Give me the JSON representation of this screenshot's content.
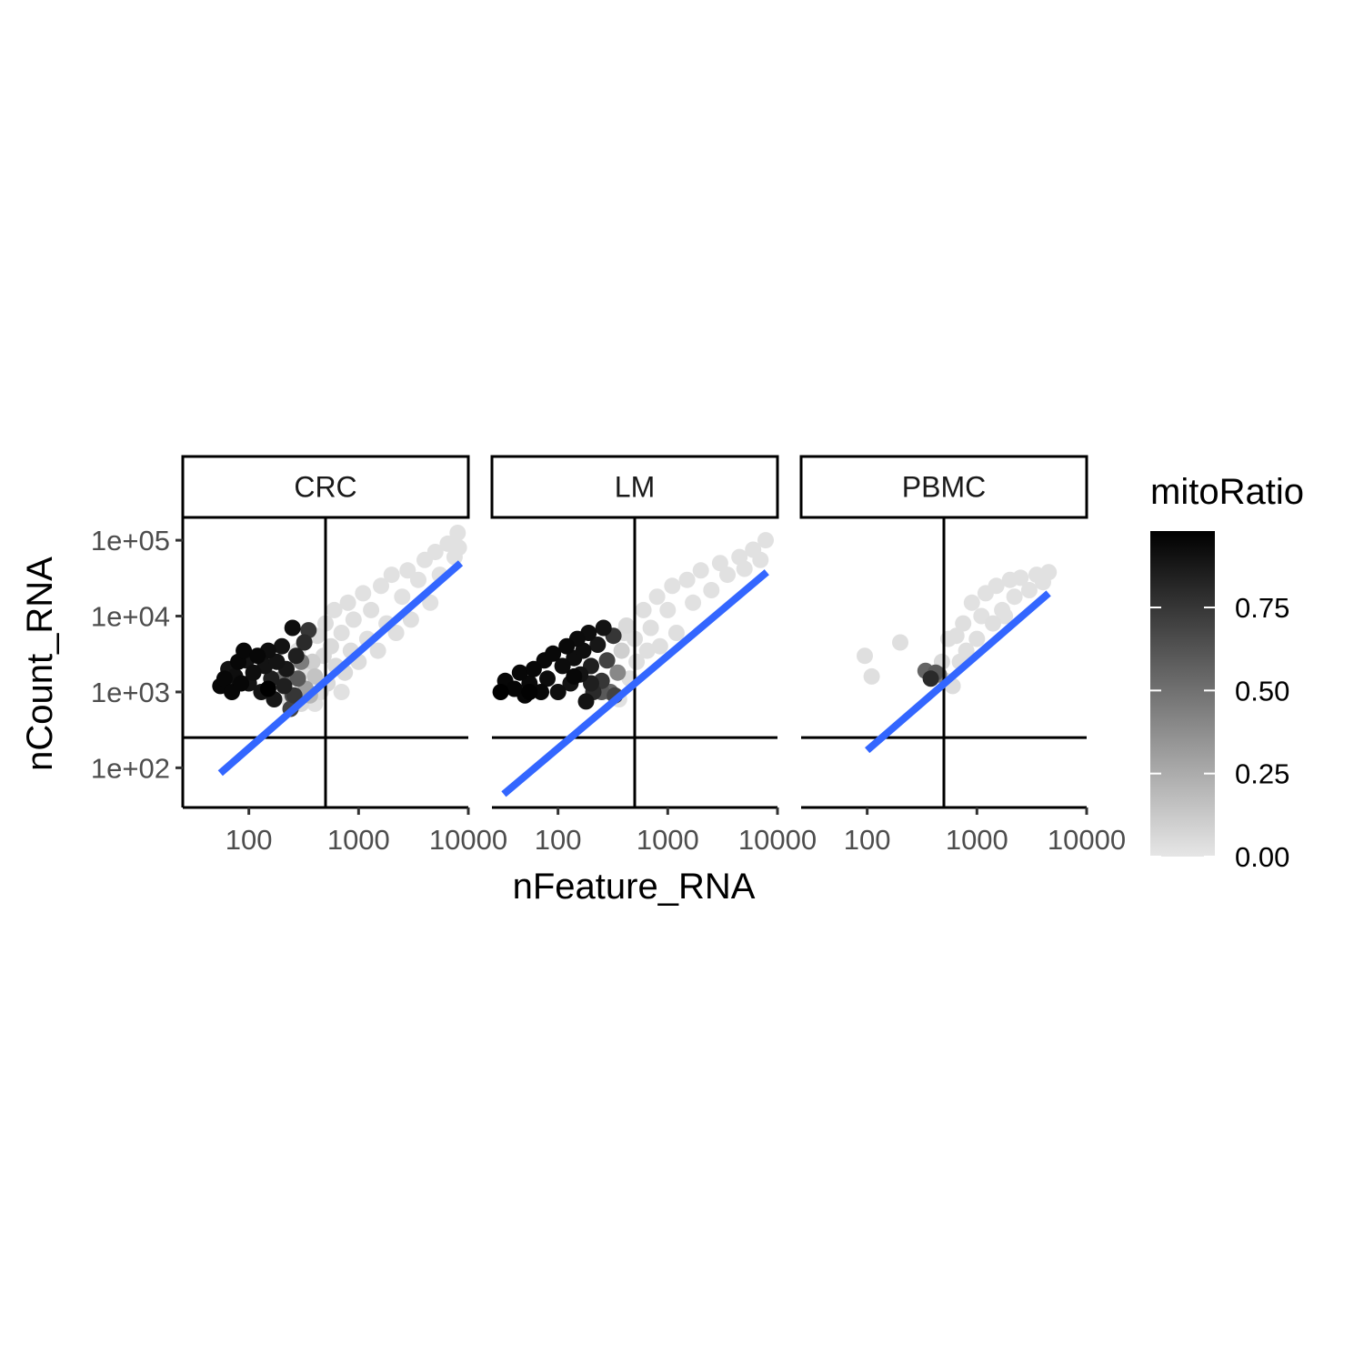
{
  "chart_data": {
    "type": "scatter",
    "x_scale": "log10",
    "y_scale": "log10",
    "xlabel": "nFeature_RNA",
    "ylabel": "nCount_RNA",
    "xlim": [
      25,
      10000
    ],
    "ylim": [
      30,
      200000
    ],
    "x_ticks": [
      {
        "value": 100,
        "label": "100"
      },
      {
        "value": 1000,
        "label": "1000"
      },
      {
        "value": 10000,
        "label": "10000"
      }
    ],
    "y_ticks": [
      {
        "value": 100,
        "label": "1e+02"
      },
      {
        "value": 1000,
        "label": "1e+03"
      },
      {
        "value": 10000,
        "label": "1e+04"
      },
      {
        "value": 100000,
        "label": "1e+05"
      }
    ],
    "grid": false,
    "reference_lines": {
      "x": 500,
      "y": 250
    },
    "fit_line_color": "#3366FF",
    "color_scale": {
      "title": "mitoRatio",
      "variable": "mitoRatio",
      "low_color": "#e6e6e6",
      "high_color": "#000000",
      "range": [
        0,
        0.98
      ],
      "breaks": [
        {
          "value": 0,
          "label": "0.00"
        },
        {
          "value": 0.25,
          "label": "0.25"
        },
        {
          "value": 0.5,
          "label": "0.50"
        },
        {
          "value": 0.75,
          "label": "0.75"
        }
      ]
    },
    "facets": [
      {
        "label": "CRC",
        "fit_line": {
          "x": [
            55,
            8500
          ],
          "y": [
            85,
            50000
          ]
        },
        "points": [
          [
            55,
            1200,
            0.95
          ],
          [
            60,
            1500,
            0.95
          ],
          [
            65,
            2000,
            0.9
          ],
          [
            70,
            1000,
            0.95
          ],
          [
            75,
            1600,
            0.92
          ],
          [
            80,
            2500,
            0.95
          ],
          [
            90,
            3500,
            0.95
          ],
          [
            100,
            1300,
            0.9
          ],
          [
            110,
            1800,
            0.92
          ],
          [
            120,
            3000,
            0.95
          ],
          [
            130,
            1000,
            0.9
          ],
          [
            140,
            2200,
            0.9
          ],
          [
            150,
            3500,
            0.92
          ],
          [
            160,
            1500,
            0.85
          ],
          [
            170,
            800,
            0.88
          ],
          [
            180,
            2500,
            0.9
          ],
          [
            200,
            4000,
            0.9
          ],
          [
            210,
            1200,
            0.85
          ],
          [
            220,
            2000,
            0.88
          ],
          [
            240,
            600,
            0.7
          ],
          [
            250,
            7000,
            0.92
          ],
          [
            260,
            900,
            0.75
          ],
          [
            270,
            3000,
            0.85
          ],
          [
            280,
            1500,
            0.6
          ],
          [
            300,
            700,
            0.05
          ],
          [
            300,
            2500,
            0.45
          ],
          [
            320,
            4500,
            0.8
          ],
          [
            330,
            1100,
            0.3
          ],
          [
            350,
            6500,
            0.75
          ],
          [
            360,
            900,
            0.2
          ],
          [
            380,
            2500,
            0.1
          ],
          [
            400,
            1600,
            0.15
          ],
          [
            420,
            5500,
            0.05
          ],
          [
            450,
            1000,
            0.05
          ],
          [
            480,
            3000,
            0.05
          ],
          [
            500,
            8000,
            0.04
          ],
          [
            520,
            1300,
            0.05
          ],
          [
            560,
            4000,
            0.05
          ],
          [
            600,
            12000,
            0.03
          ],
          [
            620,
            2200,
            0.05
          ],
          [
            700,
            6000,
            0.03
          ],
          [
            750,
            1800,
            0.05
          ],
          [
            800,
            15000,
            0.03
          ],
          [
            850,
            3500,
            0.04
          ],
          [
            900,
            9000,
            0.03
          ],
          [
            1000,
            2500,
            0.04
          ],
          [
            1100,
            20000,
            0.02
          ],
          [
            1200,
            5000,
            0.03
          ],
          [
            1300,
            12000,
            0.03
          ],
          [
            1500,
            3500,
            0.03
          ],
          [
            1600,
            25000,
            0.02
          ],
          [
            1800,
            8000,
            0.03
          ],
          [
            2000,
            35000,
            0.02
          ],
          [
            2200,
            6000,
            0.03
          ],
          [
            2500,
            18000,
            0.02
          ],
          [
            2800,
            40000,
            0.02
          ],
          [
            3000,
            9000,
            0.03
          ],
          [
            3500,
            30000,
            0.02
          ],
          [
            4000,
            55000,
            0.02
          ],
          [
            4500,
            15000,
            0.02
          ],
          [
            5000,
            70000,
            0.02
          ],
          [
            5500,
            35000,
            0.02
          ],
          [
            6500,
            90000,
            0.02
          ],
          [
            7500,
            60000,
            0.02
          ],
          [
            8000,
            125000,
            0.02
          ],
          [
            8200,
            80000,
            0.02
          ],
          [
            250,
            900,
            0.65
          ],
          [
            200,
            1500,
            0.5
          ],
          [
            230,
            800,
            0.02
          ],
          [
            150,
            1100,
            0.98
          ],
          [
            85,
            1300,
            0.95
          ],
          [
            95,
            2600,
            0.9
          ],
          [
            330,
            2000,
            0.03
          ],
          [
            280,
            3500,
            0.02
          ],
          [
            400,
            700,
            0.02
          ],
          [
            700,
            1000,
            0.02
          ]
        ]
      },
      {
        "label": "LM",
        "fit_line": {
          "x": [
            32,
            8000
          ],
          "y": [
            45,
            38000
          ]
        },
        "points": [
          [
            30,
            1000,
            0.98
          ],
          [
            33,
            1400,
            0.95
          ],
          [
            40,
            1100,
            0.96
          ],
          [
            45,
            1800,
            0.95
          ],
          [
            50,
            900,
            0.95
          ],
          [
            55,
            1300,
            0.94
          ],
          [
            60,
            2000,
            0.95
          ],
          [
            70,
            1000,
            0.95
          ],
          [
            75,
            2600,
            0.94
          ],
          [
            80,
            1500,
            0.93
          ],
          [
            90,
            3200,
            0.94
          ],
          [
            100,
            1000,
            0.92
          ],
          [
            110,
            2200,
            0.93
          ],
          [
            120,
            4000,
            0.94
          ],
          [
            130,
            1300,
            0.9
          ],
          [
            140,
            2800,
            0.92
          ],
          [
            150,
            5000,
            0.93
          ],
          [
            160,
            1700,
            0.9
          ],
          [
            170,
            3500,
            0.92
          ],
          [
            190,
            6000,
            0.92
          ],
          [
            200,
            2200,
            0.85
          ],
          [
            210,
            1000,
            0.8
          ],
          [
            230,
            4200,
            0.88
          ],
          [
            250,
            1400,
            0.75
          ],
          [
            260,
            7000,
            0.9
          ],
          [
            280,
            2600,
            0.7
          ],
          [
            300,
            1000,
            0.55
          ],
          [
            320,
            5500,
            0.75
          ],
          [
            350,
            1800,
            0.4
          ],
          [
            360,
            800,
            0.02
          ],
          [
            380,
            3500,
            0.1
          ],
          [
            420,
            7500,
            0.05
          ],
          [
            450,
            1500,
            0.03
          ],
          [
            500,
            5000,
            0.04
          ],
          [
            520,
            2500,
            0.03
          ],
          [
            600,
            12000,
            0.03
          ],
          [
            650,
            3500,
            0.03
          ],
          [
            700,
            7000,
            0.03
          ],
          [
            800,
            18000,
            0.02
          ],
          [
            850,
            4000,
            0.03
          ],
          [
            1000,
            12000,
            0.02
          ],
          [
            1100,
            25000,
            0.02
          ],
          [
            1200,
            6000,
            0.03
          ],
          [
            1500,
            30000,
            0.02
          ],
          [
            1700,
            15000,
            0.02
          ],
          [
            2000,
            40000,
            0.02
          ],
          [
            2500,
            22000,
            0.02
          ],
          [
            3000,
            50000,
            0.02
          ],
          [
            3500,
            35000,
            0.02
          ],
          [
            4500,
            60000,
            0.02
          ],
          [
            5000,
            42000,
            0.02
          ],
          [
            6000,
            75000,
            0.02
          ],
          [
            7000,
            55000,
            0.02
          ],
          [
            7800,
            100000,
            0.02
          ],
          [
            400,
            6000,
            0.04
          ],
          [
            330,
            900,
            0.7
          ],
          [
            250,
            1000,
            0.6
          ],
          [
            200,
            1300,
            0.85
          ],
          [
            180,
            750,
            0.9
          ],
          [
            140,
            1600,
            0.95
          ],
          [
            55,
            1000,
            0.97
          ]
        ]
      },
      {
        "label": "PBMC",
        "fit_line": {
          "x": [
            100,
            4500
          ],
          "y": [
            170,
            20000
          ]
        },
        "points": [
          [
            95,
            3000,
            0.03
          ],
          [
            110,
            1600,
            0.03
          ],
          [
            200,
            4500,
            0.03
          ],
          [
            340,
            1900,
            0.55
          ],
          [
            380,
            1500,
            0.8
          ],
          [
            420,
            1800,
            0.6
          ],
          [
            450,
            1700,
            0.45
          ],
          [
            480,
            2500,
            0.05
          ],
          [
            520,
            1400,
            0.03
          ],
          [
            550,
            5000,
            0.03
          ],
          [
            600,
            1200,
            0.04
          ],
          [
            700,
            2500,
            0.03
          ],
          [
            750,
            8000,
            0.03
          ],
          [
            800,
            3500,
            0.03
          ],
          [
            900,
            15000,
            0.02
          ],
          [
            1000,
            5000,
            0.03
          ],
          [
            1100,
            10000,
            0.02
          ],
          [
            1200,
            20000,
            0.02
          ],
          [
            1400,
            8000,
            0.03
          ],
          [
            1500,
            25000,
            0.02
          ],
          [
            1700,
            12000,
            0.02
          ],
          [
            2000,
            30000,
            0.02
          ],
          [
            2200,
            18000,
            0.02
          ],
          [
            2500,
            32000,
            0.02
          ],
          [
            3000,
            22000,
            0.02
          ],
          [
            3500,
            35000,
            0.02
          ],
          [
            4000,
            28000,
            0.02
          ],
          [
            4500,
            38000,
            0.02
          ],
          [
            650,
            5500,
            0.03
          ],
          [
            1800,
            10000,
            0.02
          ]
        ]
      }
    ]
  }
}
